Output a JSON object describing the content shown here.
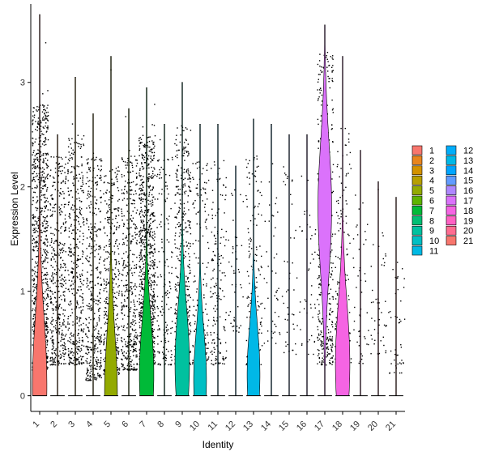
{
  "chart_data": {
    "type": "violin",
    "xlabel": "Identity",
    "ylabel": "Expression Level",
    "ylim": [
      -0.15,
      3.75
    ],
    "yticks": [
      0,
      1,
      2,
      3
    ],
    "categories": [
      "1",
      "2",
      "3",
      "4",
      "5",
      "6",
      "7",
      "8",
      "9",
      "10",
      "11",
      "12",
      "13",
      "14",
      "15",
      "16",
      "17",
      "18",
      "19",
      "20",
      "21"
    ],
    "colors": [
      "#F8766D",
      "#E8851E",
      "#D39200",
      "#B79F00",
      "#93AA00",
      "#5EB300",
      "#00BA38",
      "#00BF74",
      "#00C19F",
      "#00BFC4",
      "#00B9E3",
      "#00ADFA",
      "#00B8E7",
      "#00A5FF",
      "#619CFF",
      "#AE87FF",
      "#DB72FB",
      "#F564E3",
      "#FF61C3",
      "#FF6C91",
      "#F8766D"
    ],
    "legend_position": "right",
    "legend_columns": [
      [
        "1",
        "2",
        "3",
        "4",
        "5",
        "6",
        "7",
        "8",
        "9",
        "10",
        "11"
      ],
      [
        "12",
        "13",
        "14",
        "15",
        "16",
        "17",
        "18",
        "19",
        "20",
        "21"
      ]
    ],
    "series": [
      {
        "name": "1",
        "max": 3.65,
        "violin_peak": 0.1,
        "peak_width": 0.9,
        "point_density": "very high",
        "points_range": [
          0.25,
          2.8
        ]
      },
      {
        "name": "2",
        "max": 2.5,
        "violin_peak": 0.0,
        "peak_width": 0.0,
        "point_density": "high",
        "points_range": [
          0.3,
          2.3
        ]
      },
      {
        "name": "3",
        "max": 3.05,
        "violin_peak": 0.0,
        "peak_width": 0.0,
        "point_density": "high",
        "points_range": [
          0.3,
          2.5
        ]
      },
      {
        "name": "4",
        "max": 2.7,
        "violin_peak": 0.0,
        "peak_width": 0.0,
        "point_density": "high",
        "points_range": [
          0.15,
          2.3
        ]
      },
      {
        "name": "5",
        "max": 3.25,
        "violin_peak": 0.02,
        "peak_width": 0.8,
        "point_density": "high",
        "points_range": [
          0.2,
          2.2
        ]
      },
      {
        "name": "6",
        "max": 2.75,
        "violin_peak": 0.0,
        "peak_width": 0.0,
        "point_density": "high",
        "points_range": [
          0.25,
          2.3
        ]
      },
      {
        "name": "7",
        "max": 2.95,
        "violin_peak": 0.2,
        "peak_width": 0.9,
        "point_density": "very high",
        "points_range": [
          0.3,
          2.5
        ]
      },
      {
        "name": "8",
        "max": 2.6,
        "violin_peak": 0.0,
        "peak_width": 0.0,
        "point_density": "medium",
        "points_range": [
          0.3,
          2.3
        ]
      },
      {
        "name": "9",
        "max": 3.0,
        "violin_peak": 0.3,
        "peak_width": 0.9,
        "point_density": "high",
        "points_range": [
          0.3,
          2.6
        ]
      },
      {
        "name": "10",
        "max": 2.6,
        "violin_peak": 0.15,
        "peak_width": 0.8,
        "point_density": "medium",
        "points_range": [
          0.3,
          2.3
        ]
      },
      {
        "name": "11",
        "max": 2.6,
        "violin_peak": 0.0,
        "peak_width": 0.0,
        "point_density": "medium",
        "points_range": [
          0.3,
          2.3
        ]
      },
      {
        "name": "12",
        "max": 2.2,
        "violin_peak": 0.0,
        "peak_width": 0.0,
        "point_density": "low",
        "points_range": [
          0.6,
          2.0
        ]
      },
      {
        "name": "13",
        "max": 2.65,
        "violin_peak": 0.2,
        "peak_width": 0.8,
        "point_density": "medium",
        "points_range": [
          0.3,
          2.3
        ]
      },
      {
        "name": "14",
        "max": 2.6,
        "violin_peak": 0.0,
        "peak_width": 0.0,
        "point_density": "low",
        "points_range": [
          0.5,
          2.3
        ]
      },
      {
        "name": "15",
        "max": 2.5,
        "violin_peak": 0.0,
        "peak_width": 0.0,
        "point_density": "low",
        "points_range": [
          0.4,
          2.2
        ]
      },
      {
        "name": "16",
        "max": 2.5,
        "violin_peak": 0.0,
        "peak_width": 0.0,
        "point_density": "low",
        "points_range": [
          0.4,
          2.2
        ]
      },
      {
        "name": "17",
        "max": 3.55,
        "violin_peak": 1.8,
        "peak_width": 0.85,
        "point_density": "high",
        "points_range": [
          0.3,
          3.3
        ]
      },
      {
        "name": "18",
        "max": 3.25,
        "violin_peak": 0.3,
        "peak_width": 0.9,
        "point_density": "medium",
        "points_range": [
          0.3,
          2.6
        ]
      },
      {
        "name": "19",
        "max": 2.35,
        "violin_peak": 0.0,
        "peak_width": 0.0,
        "point_density": "low",
        "points_range": [
          0.3,
          2.0
        ]
      },
      {
        "name": "20",
        "max": 2.05,
        "violin_peak": 0.0,
        "peak_width": 0.0,
        "point_density": "low",
        "points_range": [
          0.4,
          1.6
        ]
      },
      {
        "name": "21",
        "max": 1.9,
        "violin_peak": 0.0,
        "peak_width": 0.0,
        "point_density": "low",
        "points_range": [
          0.2,
          1.3
        ]
      }
    ]
  }
}
